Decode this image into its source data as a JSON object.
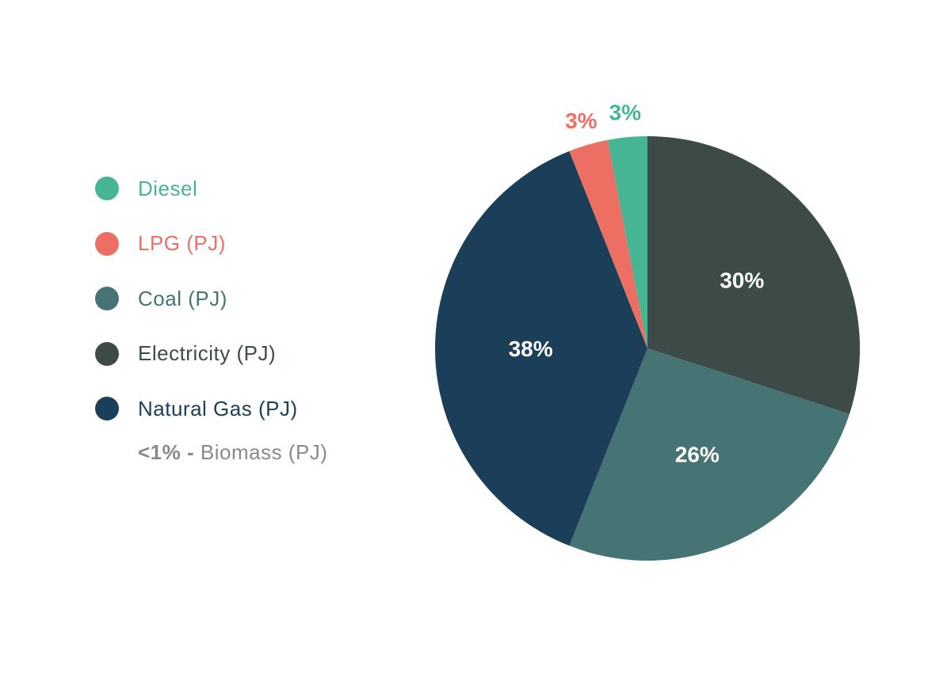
{
  "chart_data": {
    "type": "pie",
    "slices": [
      {
        "name": "Diesel",
        "value": 3,
        "label": "3%",
        "color": "#45b593",
        "label_color": "#45b593"
      },
      {
        "name": "LPG (PJ)",
        "value": 3,
        "label": "3%",
        "color": "#ed6f63",
        "label_color": "#ed6f63"
      },
      {
        "name": "Coal (PJ)",
        "value": 26,
        "label": "26%",
        "color": "#467474",
        "label_color": "#ffffff"
      },
      {
        "name": "Electricity (PJ)",
        "value": 30,
        "label": "30%",
        "color": "#3c4a48",
        "label_color": "#ffffff"
      },
      {
        "name": "Natural Gas (PJ)",
        "value": 38,
        "label": "38%",
        "color": "#1b3f58",
        "label_color": "#ffffff"
      }
    ],
    "slice_order_clockwise_from_top": [
      "Electricity (PJ)",
      "Coal (PJ)",
      "Natural Gas (PJ)",
      "LPG (PJ)",
      "Diesel"
    ],
    "legend_position": "left",
    "note": {
      "prefix": "<1% -",
      "text": "Biomass (PJ)"
    }
  }
}
